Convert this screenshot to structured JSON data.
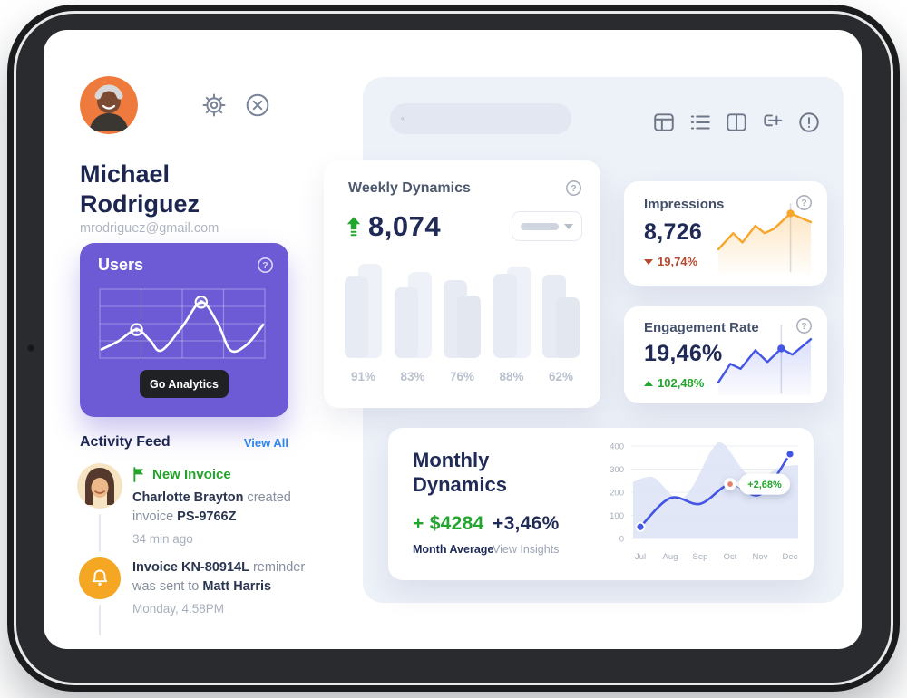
{
  "icons": {
    "help_glyph": "?"
  },
  "profile": {
    "first_name": "Michael",
    "last_name": "Rodriguez",
    "email": "mrodriguez@gmail.com"
  },
  "users_card": {
    "title": "Users",
    "button_label": "Go Analytics"
  },
  "activity_feed": {
    "title": "Activity Feed",
    "view_all_label": "View All",
    "items": [
      {
        "badge": "New Invoice",
        "line1_bold": "Charlotte Brayton",
        "line1_rest": " created",
        "line2_rest": "invoice ",
        "line2_bold": "PS-9766Z",
        "time": "34 min ago"
      },
      {
        "line1_bold": "Invoice KN-80914L",
        "line1_rest": " reminder",
        "line2_rest": "was sent to ",
        "line2_bold": "Matt Harris",
        "time": "Monday, 4:58PM"
      }
    ]
  },
  "weekly": {
    "title": "Weekly Dynamics",
    "value": "8,074"
  },
  "impressions": {
    "title": "Impressions",
    "value": "8,726",
    "delta": "19,74%"
  },
  "engagement": {
    "title": "Engagement Rate",
    "value": "19,46%",
    "delta": "102,48%"
  },
  "monthly": {
    "title_line1": "Monthly",
    "title_line2": "Dynamics",
    "amount": "+ $4284",
    "amount_label": "Month Average",
    "percent": "+3,46%",
    "percent_label": "View Insights"
  },
  "colors": {
    "purple": "#6C5BD4",
    "orange": "#F7A62B",
    "blue": "#4355E4",
    "green": "#23A62E",
    "red": "#B4492F",
    "navy": "#1F2A56",
    "link_blue": "#2E86ED"
  },
  "chart_data": [
    {
      "id": "users-sparkline",
      "type": "line",
      "title": "Users",
      "note": "decorative white sparkline over grid, two ring markers at local peaks",
      "points_norm": [
        [
          0,
          0.93
        ],
        [
          0.1,
          0.8
        ],
        [
          0.217,
          0.6
        ],
        [
          0.3,
          0.78
        ],
        [
          0.37,
          0.95
        ],
        [
          0.5,
          0.55
        ],
        [
          0.617,
          0.14
        ],
        [
          0.72,
          0.5
        ],
        [
          0.8,
          0.95
        ],
        [
          0.9,
          0.85
        ],
        [
          1,
          0.52
        ]
      ],
      "marker_indices": [
        2,
        6
      ],
      "line_color": "#ffffff"
    },
    {
      "id": "weekly-bars",
      "type": "bar",
      "title": "Weekly Dynamics",
      "headline_value": "8,074",
      "categories": [
        "91%",
        "83%",
        "76%",
        "88%",
        "62%"
      ],
      "series": [
        {
          "name": "left-bar-height-norm",
          "values_norm": [
            0.8,
            0.7,
            0.77,
            0.83,
            0.82
          ]
        },
        {
          "name": "right-bar-height-norm",
          "values_norm": [
            0.93,
            0.85,
            0.62,
            0.9,
            0.6
          ]
        }
      ]
    },
    {
      "id": "impressions-sparkline",
      "type": "line",
      "value": "8,726",
      "delta": "-19,74%",
      "points_norm": [
        [
          0,
          0.66
        ],
        [
          0.16,
          0.4
        ],
        [
          0.26,
          0.55
        ],
        [
          0.4,
          0.28
        ],
        [
          0.5,
          0.4
        ],
        [
          0.6,
          0.33
        ],
        [
          0.78,
          0.08
        ],
        [
          1,
          0.22
        ]
      ],
      "marker_index": 6,
      "line_color": "#F7A62B"
    },
    {
      "id": "engagement-sparkline",
      "type": "line",
      "value": "19,46%",
      "delta": "+102,48%",
      "points_norm": [
        [
          0,
          0.85
        ],
        [
          0.13,
          0.55
        ],
        [
          0.24,
          0.63
        ],
        [
          0.4,
          0.33
        ],
        [
          0.53,
          0.52
        ],
        [
          0.68,
          0.3
        ],
        [
          0.8,
          0.4
        ],
        [
          1,
          0.15
        ]
      ],
      "marker_index": 5,
      "line_color": "#4355E4"
    },
    {
      "id": "monthly-line",
      "type": "area",
      "title": "Monthly Dynamics",
      "x": [
        "Jul",
        "Aug",
        "Sep",
        "Oct",
        "Nov",
        "Dec"
      ],
      "values": [
        50,
        175,
        150,
        235,
        190,
        365
      ],
      "ylim": [
        0,
        400
      ],
      "yticks": [
        "400",
        "300",
        "200",
        "100",
        "0"
      ],
      "tooltip": {
        "label": "+2,68%",
        "x": "Oct"
      },
      "line_color": "#4355E4",
      "area_norm": [
        [
          0,
          0.4
        ],
        [
          0.08,
          0.35
        ],
        [
          0.14,
          0.37
        ],
        [
          0.27,
          0.58
        ],
        [
          0.36,
          0.45
        ],
        [
          0.48,
          0.05
        ],
        [
          0.55,
          0.0
        ],
        [
          0.68,
          0.3
        ],
        [
          0.78,
          0.35
        ],
        [
          0.88,
          0.25
        ],
        [
          1,
          0.22
        ]
      ]
    }
  ]
}
